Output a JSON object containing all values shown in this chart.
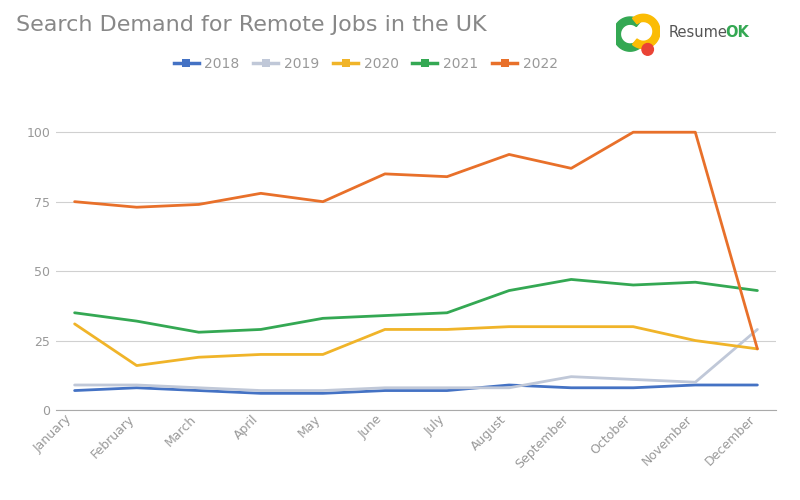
{
  "title": "Search Demand for Remote Jobs in the UK",
  "months": [
    "January",
    "February",
    "March",
    "April",
    "May",
    "June",
    "July",
    "August",
    "September",
    "October",
    "November",
    "December"
  ],
  "series": {
    "2018": [
      7,
      8,
      7,
      6,
      6,
      7,
      7,
      9,
      8,
      8,
      9,
      9
    ],
    "2019": [
      9,
      9,
      8,
      7,
      7,
      8,
      8,
      8,
      12,
      11,
      10,
      29
    ],
    "2020": [
      31,
      16,
      19,
      20,
      20,
      29,
      29,
      30,
      30,
      30,
      25,
      22
    ],
    "2021": [
      35,
      32,
      28,
      29,
      33,
      34,
      35,
      43,
      47,
      45,
      46,
      43
    ],
    "2022": [
      75,
      73,
      74,
      78,
      75,
      85,
      84,
      92,
      87,
      100,
      100,
      22
    ]
  },
  "colors": {
    "2018": "#4472c4",
    "2019": "#c0c8d8",
    "2020": "#f0b429",
    "2021": "#34a853",
    "2022": "#e8702a"
  },
  "ylim": [
    0,
    108
  ],
  "yticks": [
    0,
    25,
    50,
    75,
    100
  ],
  "background_color": "#ffffff",
  "grid_color": "#d0d0d0",
  "title_color": "#888888",
  "tick_color": "#999999",
  "title_fontsize": 16,
  "legend_fontsize": 10,
  "tick_fontsize": 9
}
